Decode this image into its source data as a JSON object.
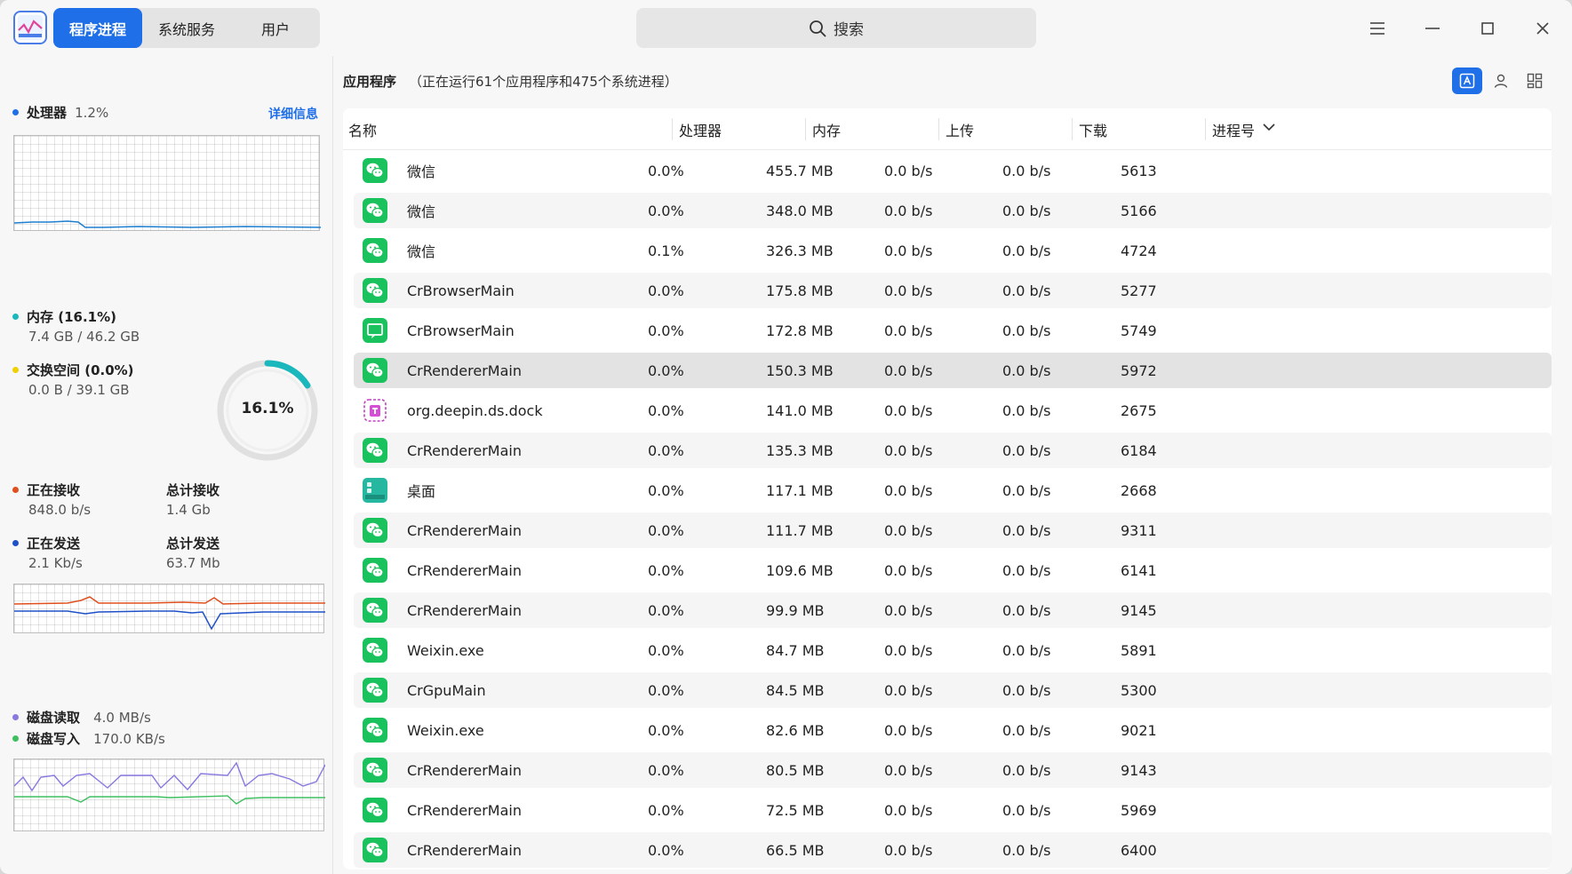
{
  "tabs": [
    {
      "label": "程序进程",
      "active": true
    },
    {
      "label": "系统服务",
      "active": false
    },
    {
      "label": "用户",
      "active": false
    }
  ],
  "search": {
    "placeholder": "搜索",
    "icon": "search-icon"
  },
  "window_controls": [
    "menu-icon",
    "minimize-icon",
    "maximize-icon",
    "close-icon"
  ],
  "sidebar": {
    "cpu": {
      "label": "处理器",
      "value": "1.2%",
      "detail": "详细信息",
      "color": "#1e6fe8"
    },
    "memory": {
      "label": "内存 (16.1%)",
      "value": "7.4 GB / 46.2 GB",
      "color": "#1ab7bd",
      "percent_text": "16.1%",
      "percent": 16.1
    },
    "swap": {
      "label": "交换空间 (0.0%)",
      "value": "0.0 B / 39.1 GB",
      "color": "#f0d000"
    },
    "network": {
      "recv_label": "正在接收",
      "recv_value": "848.0 b/s",
      "recv_color": "#e0501e",
      "total_recv_label": "总计接收",
      "total_recv_value": "1.4 Gb",
      "send_label": "正在发送",
      "send_value": "2.1 Kb/s",
      "send_color": "#1e50c8",
      "total_send_label": "总计发送",
      "total_send_value": "63.7 Mb"
    },
    "disk": {
      "read_label": "磁盘读取",
      "read_value": "4.0 MB/s",
      "read_color": "#8878e0",
      "write_label": "磁盘写入",
      "write_value": "170.0 KB/s",
      "write_color": "#3ec060"
    }
  },
  "main": {
    "title": "应用程序",
    "subtitle": "（正在运行61个应用程序和475个系统进程）",
    "columns": [
      "名称",
      "处理器",
      "内存",
      "上传",
      "下载",
      "进程号"
    ],
    "rows": [
      {
        "name": "微信",
        "cpu": "0.0%",
        "mem": "455.7 MB",
        "up": "0.0 b/s",
        "down": "0.0 b/s",
        "pid": "5613",
        "icon": "wechat"
      },
      {
        "name": "微信",
        "cpu": "0.0%",
        "mem": "348.0 MB",
        "up": "0.0 b/s",
        "down": "0.0 b/s",
        "pid": "5166",
        "icon": "wechat"
      },
      {
        "name": "微信",
        "cpu": "0.1%",
        "mem": "326.3 MB",
        "up": "0.0 b/s",
        "down": "0.0 b/s",
        "pid": "4724",
        "icon": "wechat"
      },
      {
        "name": "CrBrowserMain",
        "cpu": "0.0%",
        "mem": "175.8 MB",
        "up": "0.0 b/s",
        "down": "0.0 b/s",
        "pid": "5277",
        "icon": "wechat"
      },
      {
        "name": "CrBrowserMain",
        "cpu": "0.0%",
        "mem": "172.8 MB",
        "up": "0.0 b/s",
        "down": "0.0 b/s",
        "pid": "5749",
        "icon": "chat"
      },
      {
        "name": "CrRendererMain",
        "cpu": "0.0%",
        "mem": "150.3 MB",
        "up": "0.0 b/s",
        "down": "0.0 b/s",
        "pid": "5972",
        "icon": "wechat"
      },
      {
        "name": "org.deepin.ds.dock",
        "cpu": "0.0%",
        "mem": "141.0 MB",
        "up": "0.0 b/s",
        "down": "0.0 b/s",
        "pid": "2675",
        "icon": "dock"
      },
      {
        "name": "CrRendererMain",
        "cpu": "0.0%",
        "mem": "135.3 MB",
        "up": "0.0 b/s",
        "down": "0.0 b/s",
        "pid": "6184",
        "icon": "wechat"
      },
      {
        "name": "桌面",
        "cpu": "0.0%",
        "mem": "117.1 MB",
        "up": "0.0 b/s",
        "down": "0.0 b/s",
        "pid": "2668",
        "icon": "desktop"
      },
      {
        "name": "CrRendererMain",
        "cpu": "0.0%",
        "mem": "111.7 MB",
        "up": "0.0 b/s",
        "down": "0.0 b/s",
        "pid": "9311",
        "icon": "wechat"
      },
      {
        "name": "CrRendererMain",
        "cpu": "0.0%",
        "mem": "109.6 MB",
        "up": "0.0 b/s",
        "down": "0.0 b/s",
        "pid": "6141",
        "icon": "wechat"
      },
      {
        "name": "CrRendererMain",
        "cpu": "0.0%",
        "mem": "99.9 MB",
        "up": "0.0 b/s",
        "down": "0.0 b/s",
        "pid": "9145",
        "icon": "wechat"
      },
      {
        "name": "Weixin.exe",
        "cpu": "0.0%",
        "mem": "84.7 MB",
        "up": "0.0 b/s",
        "down": "0.0 b/s",
        "pid": "5891",
        "icon": "wechat"
      },
      {
        "name": "CrGpuMain",
        "cpu": "0.0%",
        "mem": "84.5 MB",
        "up": "0.0 b/s",
        "down": "0.0 b/s",
        "pid": "5300",
        "icon": "wechat"
      },
      {
        "name": "Weixin.exe",
        "cpu": "0.0%",
        "mem": "82.6 MB",
        "up": "0.0 b/s",
        "down": "0.0 b/s",
        "pid": "9021",
        "icon": "wechat"
      },
      {
        "name": "CrRendererMain",
        "cpu": "0.0%",
        "mem": "80.5 MB",
        "up": "0.0 b/s",
        "down": "0.0 b/s",
        "pid": "9143",
        "icon": "wechat"
      },
      {
        "name": "CrRendererMain",
        "cpu": "0.0%",
        "mem": "72.5 MB",
        "up": "0.0 b/s",
        "down": "0.0 b/s",
        "pid": "5969",
        "icon": "wechat"
      },
      {
        "name": "CrRendererMain",
        "cpu": "0.0%",
        "mem": "66.5 MB",
        "up": "0.0 b/s",
        "down": "0.0 b/s",
        "pid": "6400",
        "icon": "wechat"
      }
    ],
    "selected_index": 5
  },
  "colors": {
    "accent": "#1e6fe8",
    "wechat": "#19c25c"
  }
}
